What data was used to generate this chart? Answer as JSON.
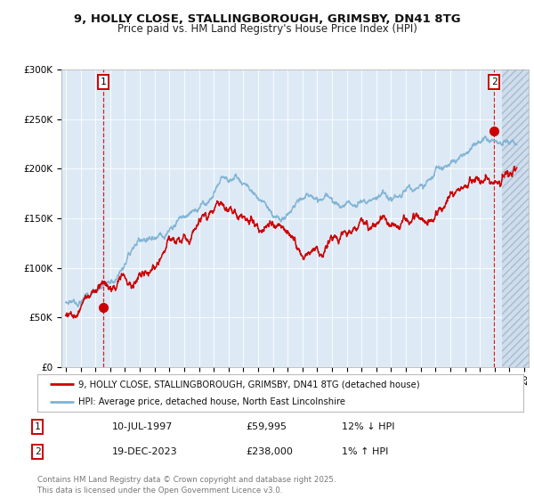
{
  "title_line1": "9, HOLLY CLOSE, STALLINGBOROUGH, GRIMSBY, DN41 8TG",
  "title_line2": "Price paid vs. HM Land Registry's House Price Index (HPI)",
  "legend_label1": "9, HOLLY CLOSE, STALLINGBOROUGH, GRIMSBY, DN41 8TG (detached house)",
  "legend_label2": "HPI: Average price, detached house, North East Lincolnshire",
  "annotation1_date": "10-JUL-1997",
  "annotation1_price": "£59,995",
  "annotation1_hpi": "12% ↓ HPI",
  "annotation2_date": "19-DEC-2023",
  "annotation2_price": "£238,000",
  "annotation2_hpi": "1% ↑ HPI",
  "footer": "Contains HM Land Registry data © Crown copyright and database right 2025.\nThis data is licensed under the Open Government Licence v3.0.",
  "red_color": "#cc0000",
  "blue_color": "#7fb3d3",
  "bg_color": "#ddeaf6",
  "grid_color": "#ffffff",
  "ylim_min": 0,
  "ylim_max": 300000,
  "sale1_date_decimal": 1997.53,
  "sale1_price": 59995,
  "sale2_date_decimal": 2023.96,
  "sale2_price": 238000,
  "xlim_min": 1994.7,
  "xlim_max": 2026.3
}
